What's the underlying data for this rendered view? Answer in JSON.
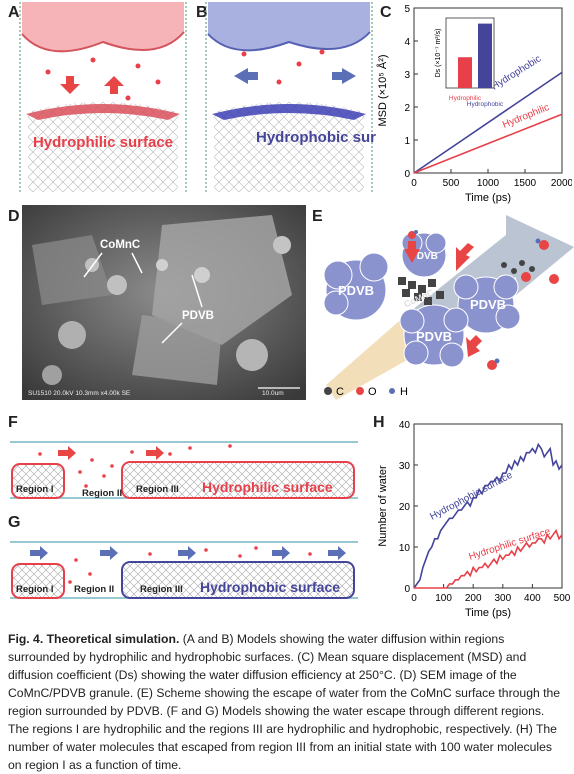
{
  "panels": {
    "A": {
      "label": "A",
      "surface_text": "Hydrophilic surface"
    },
    "B": {
      "label": "B",
      "surface_text": "Hydrophobic surface"
    },
    "C": {
      "label": "C"
    },
    "D": {
      "label": "D",
      "callout_comnc": "CoMnC",
      "callout_pdvb": "PDVB",
      "sem_info": "SU1510 20.0kV 10.3mm x4.00k SE",
      "scale_bar": "10.0um"
    },
    "E": {
      "label": "E",
      "blobs": [
        "PDVB",
        "PDVB",
        "PDVB",
        "PDVB",
        "PDVB"
      ],
      "core": "CoMnC",
      "legend": [
        "C",
        "O",
        "H"
      ]
    },
    "F": {
      "label": "F",
      "regions": [
        "Region I",
        "Region II",
        "Region III"
      ],
      "surface_text": "Hydrophilic surface"
    },
    "G": {
      "label": "G",
      "regions": [
        "Region I",
        "Region II",
        "Region III"
      ],
      "surface_text": "Hydrophobic surface"
    },
    "H": {
      "label": "H"
    }
  },
  "colors": {
    "hydrophilic": "#e8404a",
    "hydrophobic": "#44449a",
    "arrow_red": "#e84545",
    "arrow_blue": "#5b6fb6"
  },
  "chart_data": [
    {
      "id": "C",
      "type": "line",
      "xlabel": "Time (ps)",
      "ylabel": "MSD (×10⁵ Å²)",
      "xlim": [
        0,
        2000
      ],
      "ylim": [
        0,
        5
      ],
      "xticks": [
        "0",
        "500",
        "1000",
        "1500",
        "2000"
      ],
      "yticks": [
        "0",
        "1",
        "2",
        "3",
        "4",
        "5"
      ],
      "series": [
        {
          "name": "Hydrophobic",
          "color": "#44449a",
          "x": [
            0,
            2000
          ],
          "y": [
            0,
            3.05
          ]
        },
        {
          "name": "Hydrophilic",
          "color": "#e8404a",
          "x": [
            0,
            2000
          ],
          "y": [
            0,
            1.78
          ]
        }
      ],
      "inset": {
        "type": "bar",
        "ylabel": "Ds (×10⁻⁷ m²/s)",
        "categories": [
          "Hydrophilic",
          "Hydrophobic"
        ],
        "values": [
          2.2,
          4.6
        ],
        "ylim": [
          0,
          5
        ],
        "colors": [
          "#e8404a",
          "#44449a"
        ]
      }
    },
    {
      "id": "H",
      "type": "line",
      "xlabel": "Time (ps)",
      "ylabel": "Number of water",
      "xlim": [
        0,
        500
      ],
      "ylim": [
        0,
        40
      ],
      "xticks": [
        "0",
        "100",
        "200",
        "300",
        "400",
        "500"
      ],
      "yticks": [
        "0",
        "10",
        "20",
        "30",
        "40"
      ],
      "series": [
        {
          "name": "Hydrophobic surface",
          "color": "#44449a",
          "x": [
            0,
            10,
            20,
            30,
            40,
            50,
            60,
            70,
            80,
            90,
            100,
            110,
            120,
            130,
            140,
            150,
            160,
            170,
            180,
            190,
            200,
            210,
            220,
            230,
            240,
            250,
            260,
            270,
            280,
            290,
            300,
            310,
            320,
            330,
            340,
            350,
            360,
            370,
            380,
            390,
            400,
            410,
            420,
            430,
            440,
            450,
            460,
            470,
            480,
            490,
            500
          ],
          "y": [
            0,
            1,
            2,
            5,
            7,
            9,
            10,
            12,
            12,
            14,
            15,
            16,
            17,
            17,
            18,
            19,
            19,
            20,
            21,
            20,
            22,
            22,
            24,
            23,
            25,
            25,
            26,
            26,
            27,
            26,
            28,
            28,
            30,
            29,
            31,
            30,
            32,
            31,
            33,
            33,
            34,
            33,
            35,
            34,
            32,
            33,
            34,
            30,
            31,
            29,
            30
          ]
        },
        {
          "name": "Hydrophilic surface",
          "color": "#e8404a",
          "x": [
            0,
            10,
            20,
            30,
            40,
            50,
            60,
            70,
            80,
            90,
            100,
            110,
            120,
            130,
            140,
            150,
            160,
            170,
            180,
            190,
            200,
            210,
            220,
            230,
            240,
            250,
            260,
            270,
            280,
            290,
            300,
            310,
            320,
            330,
            340,
            350,
            360,
            370,
            380,
            390,
            400,
            410,
            420,
            430,
            440,
            450,
            460,
            470,
            480,
            490,
            500
          ],
          "y": [
            0,
            0,
            0,
            0,
            0,
            0,
            0,
            0,
            0,
            0,
            0,
            0,
            1,
            1,
            2,
            2,
            3,
            3,
            4,
            3,
            5,
            4,
            5,
            5,
            6,
            5,
            6,
            7,
            6,
            8,
            7,
            8,
            8,
            9,
            8,
            10,
            9,
            10,
            11,
            10,
            11,
            11,
            12,
            12,
            11,
            13,
            12,
            13,
            14,
            12,
            13
          ]
        }
      ]
    }
  ],
  "caption": {
    "title": "Fig. 4. Theoretical simulation.",
    "body": " (A and B) Models showing the water diffusion within regions surrounded by hydrophilic and hydrophobic surfaces. (C) Mean square displacement (MSD) and diffusion coefficient (Ds) showing the water diffusion efficiency at 250°C. (D) SEM image of the CoMnC/PDVB granule. (E) Scheme showing the escape of water from the CoMnC surface through the region surrounded by PDVB. (F and G) Models showing the water escape through different regions. The regions I are hydrophilic and the regions III are hydrophilic and hydrophobic, respectively. (H) The number of water molecules that escaped from region III from an initial state with 100 water molecules on region I as a function of time."
  }
}
